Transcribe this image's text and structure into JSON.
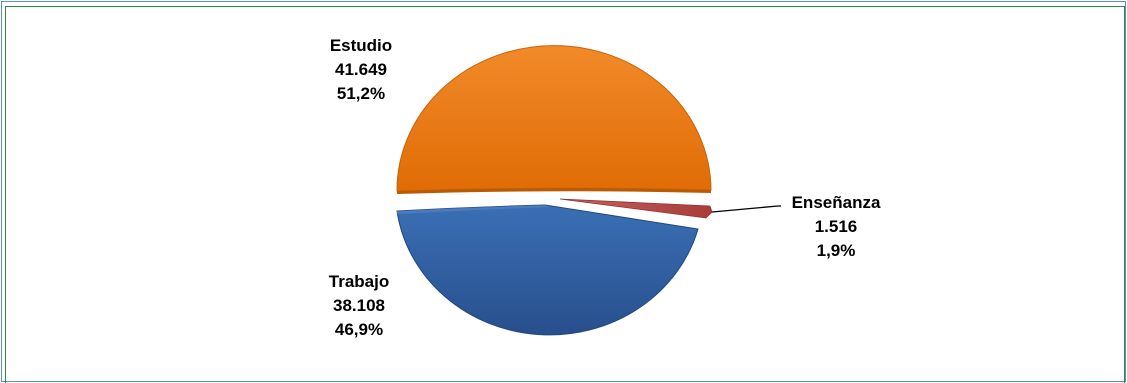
{
  "chart_data": {
    "type": "pie",
    "style": "3d-exploded",
    "slices": [
      {
        "name": "Estudio",
        "value": 41649,
        "value_label": "41.649",
        "percent": 51.2,
        "percent_label": "51,2%",
        "color": "#f07a10"
      },
      {
        "name": "Enseñanza",
        "value": 1516,
        "value_label": "1.516",
        "percent": 1.9,
        "percent_label": "1,9%",
        "color": "#c0504d"
      },
      {
        "name": "Trabajo",
        "value": 38108,
        "value_label": "38.108",
        "percent": 46.9,
        "percent_label": "46,9%",
        "color": "#2e60a4"
      }
    ]
  }
}
